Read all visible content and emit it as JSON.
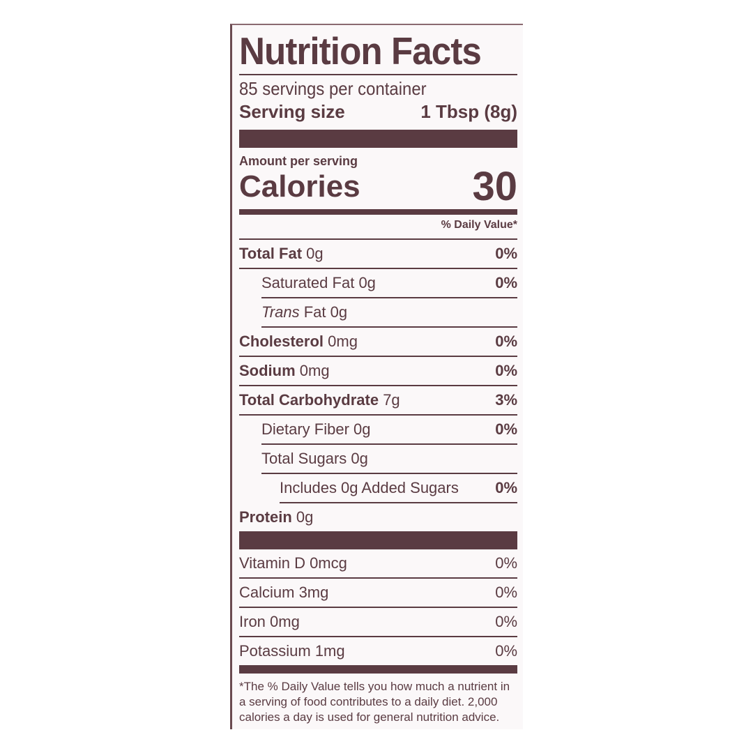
{
  "title": "Nutrition Facts",
  "servings_per_container": "85 servings per container",
  "serving_size": {
    "label": "Serving size",
    "value": "1 Tbsp (8g)"
  },
  "amount_per_serving": "Amount per serving",
  "calories": {
    "label": "Calories",
    "value": "30"
  },
  "daily_value_header": "% Daily Value*",
  "nutrients": [
    {
      "name": "Total Fat",
      "amount": "0g",
      "dv": "0%"
    },
    {
      "name": "Saturated Fat",
      "amount": "0g",
      "dv": "0%"
    },
    {
      "name": "Trans",
      "name_suffix": "Fat",
      "amount": "0g",
      "dv": ""
    },
    {
      "name": "Cholesterol",
      "amount": "0mg",
      "dv": "0%"
    },
    {
      "name": "Sodium",
      "amount": "0mg",
      "dv": "0%"
    },
    {
      "name": "Total Carbohydrate",
      "amount": "7g",
      "dv": "3%"
    },
    {
      "name": "Dietary Fiber",
      "amount": "0g",
      "dv": "0%"
    },
    {
      "name": "Total Sugars",
      "amount": "0g",
      "dv": ""
    },
    {
      "name": "Includes 0g Added Sugars",
      "amount": "",
      "dv": "0%"
    },
    {
      "name": "Protein",
      "amount": "0g",
      "dv": ""
    }
  ],
  "vitamins": [
    {
      "name": "Vitamin D 0mcg",
      "dv": "0%"
    },
    {
      "name": "Calcium 3mg",
      "dv": "0%"
    },
    {
      "name": "Iron 0mg",
      "dv": "0%"
    },
    {
      "name": "Potassium 1mg",
      "dv": "0%"
    }
  ],
  "footnote": "*The % Daily Value tells you how much a nutrient in a serving of food contributes to a daily diet. 2,000 calories a day is used for general nutrition advice.",
  "colors": {
    "ink": "#5a3b42",
    "background": "#fbf8f9"
  }
}
